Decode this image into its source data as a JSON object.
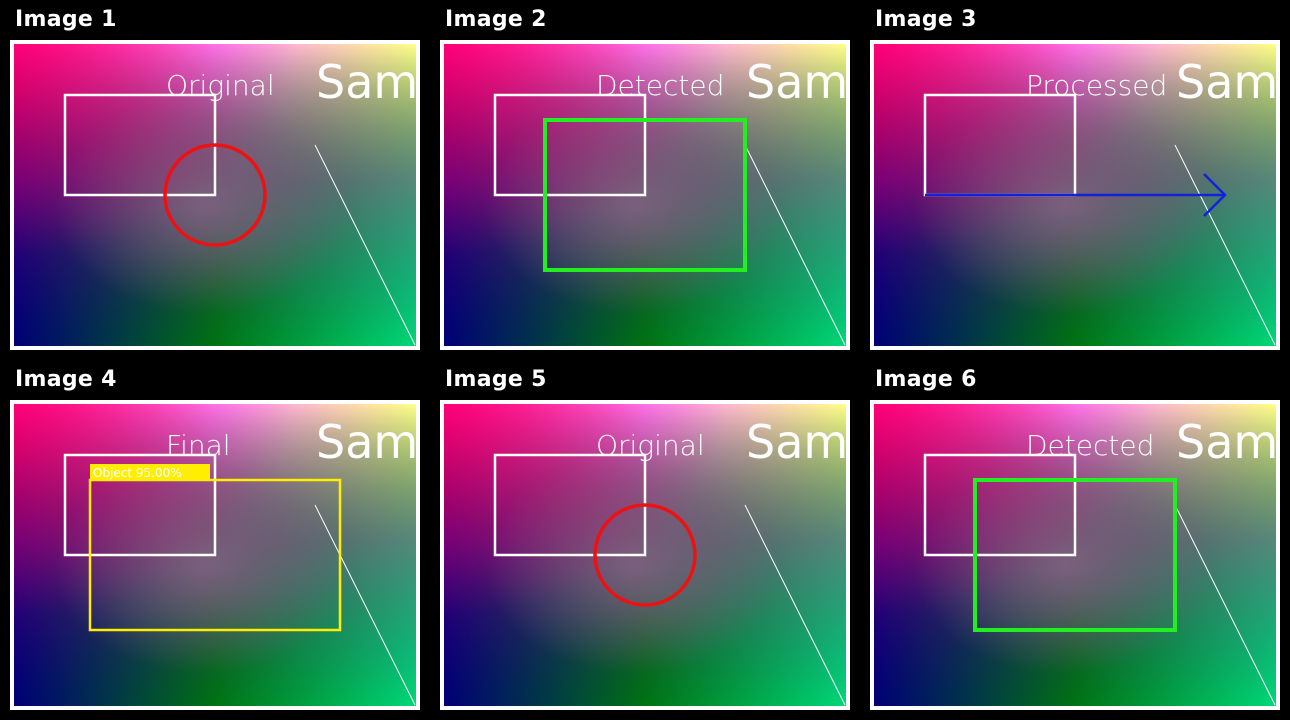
{
  "panels": [
    {
      "title": "Image 1",
      "label": "Original",
      "sample_text": "Sam",
      "overlay": "circle",
      "overlay_color": "#ee1111"
    },
    {
      "title": "Image 2",
      "label": "Detected",
      "sample_text": "Sam",
      "overlay": "box",
      "overlay_color": "#22ee22"
    },
    {
      "title": "Image 3",
      "label": "Processed",
      "sample_text": "Sam",
      "overlay": "arrow",
      "overlay_color": "#1122dd"
    },
    {
      "title": "Image 4",
      "label": "Final",
      "sample_text": "Sam",
      "overlay": "tagged-box",
      "overlay_color": "#ffee00",
      "tag": "Object 95.00%"
    },
    {
      "title": "Image 5",
      "label": "Original",
      "sample_text": "Sam",
      "overlay": "circle",
      "overlay_color": "#ee1111"
    },
    {
      "title": "Image 6",
      "label": "Detected",
      "sample_text": "Sam",
      "overlay": "box",
      "overlay_color": "#22ee22"
    }
  ],
  "gradient_colors": {
    "top_left": "#ff0077",
    "top_mid": "#ff88ff",
    "top_right": "#ffff88",
    "mid_left": "#660077",
    "center": "#886688",
    "bottom_left": "#000077",
    "bottom_mid": "#008800",
    "bottom_right": "#00ff77"
  }
}
